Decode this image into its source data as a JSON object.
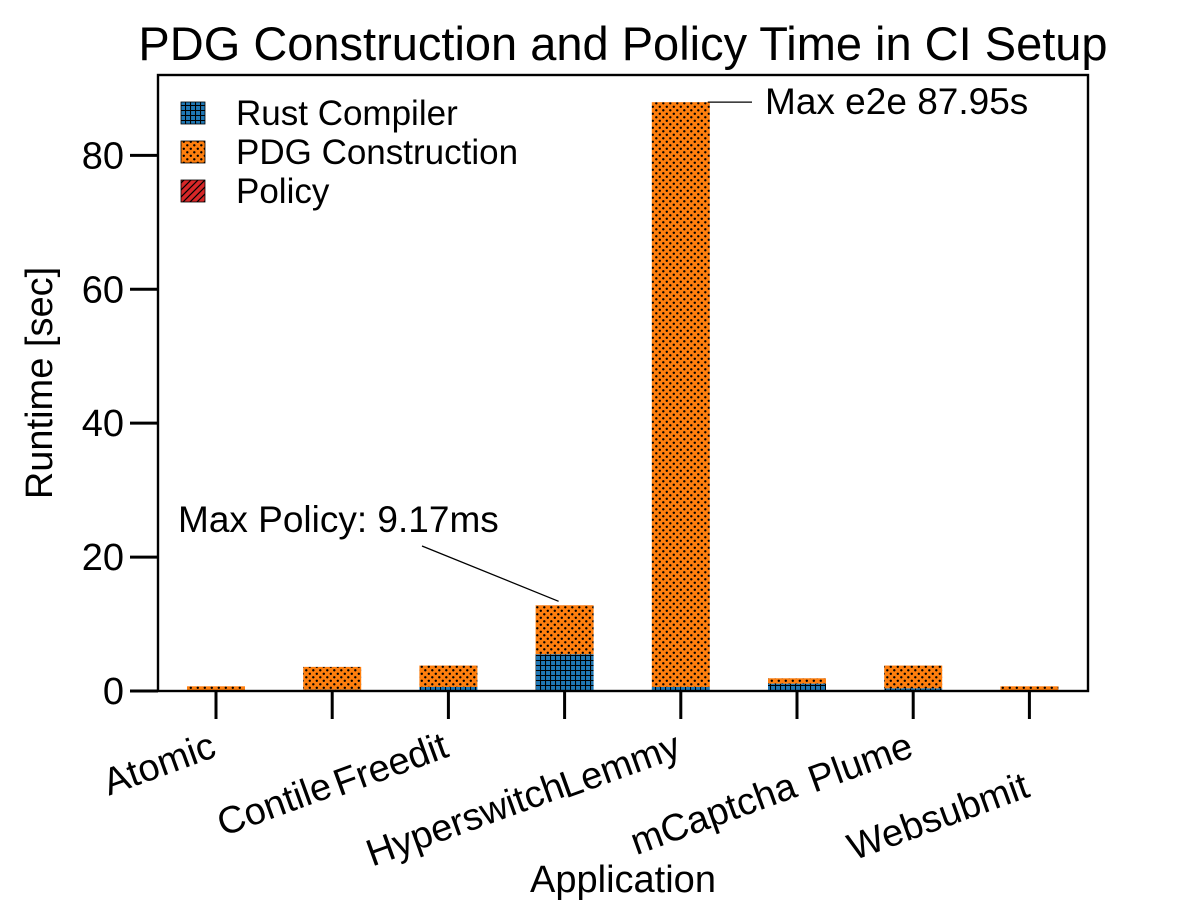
{
  "chart_data": {
    "type": "bar",
    "stacked": true,
    "title": "PDG Construction and Policy Time in CI Setup",
    "xlabel": "Application",
    "ylabel": "Runtime [sec]",
    "ylim": [
      0,
      92
    ],
    "yticks": [
      0,
      20,
      40,
      60,
      80
    ],
    "categories": [
      "Atomic",
      "Contile",
      "Freedit",
      "Hyperswitch",
      "Lemmy",
      "mCaptcha",
      "Plume",
      "Websubmit"
    ],
    "series": [
      {
        "name": "Rust Compiler",
        "color": "#1f77b4",
        "pattern": "grid",
        "values": [
          0.1,
          0.2,
          0.6,
          5.5,
          0.6,
          1.1,
          0.4,
          0.1
        ]
      },
      {
        "name": "PDG Construction",
        "color": "#ff7f0e",
        "pattern": "dots",
        "values": [
          0.6,
          3.4,
          3.2,
          7.3,
          87.34,
          0.8,
          3.4,
          0.6
        ]
      },
      {
        "name": "Policy",
        "color": "#d62728",
        "pattern": "hatch",
        "values": [
          0.002,
          0.003,
          0.004,
          0.00917,
          0.005,
          0.002,
          0.003,
          0.002
        ]
      }
    ],
    "legend_position": "top-left",
    "annotations": [
      {
        "text": "Max e2e 87.95s",
        "category": "Lemmy",
        "y": 87.95
      },
      {
        "text": "Max Policy: 9.17ms",
        "category": "Hyperswitch",
        "y": 12.8
      }
    ]
  }
}
